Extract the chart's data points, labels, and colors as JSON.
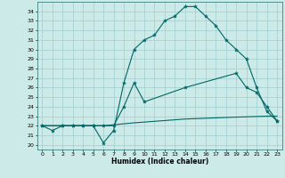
{
  "xlabel": "Humidex (Indice chaleur)",
  "bg_color": "#cceae8",
  "grid_color": "#9ecece",
  "line_color": "#006666",
  "xlim": [
    -0.5,
    23.5
  ],
  "ylim": [
    19.5,
    35.0
  ],
  "yticks": [
    20,
    21,
    22,
    23,
    24,
    25,
    26,
    27,
    28,
    29,
    30,
    31,
    32,
    33,
    34
  ],
  "xticks": [
    0,
    1,
    2,
    3,
    4,
    5,
    6,
    7,
    8,
    9,
    10,
    11,
    12,
    13,
    14,
    15,
    16,
    17,
    18,
    19,
    20,
    21,
    22,
    23
  ],
  "curve1_x": [
    0,
    1,
    2,
    3,
    4,
    5,
    6,
    7,
    8,
    9,
    10,
    11,
    12,
    13,
    14,
    15,
    16,
    17,
    18,
    19,
    20,
    21,
    22,
    23
  ],
  "curve1_y": [
    22.0,
    21.5,
    22.0,
    22.0,
    22.0,
    22.0,
    20.2,
    21.5,
    26.5,
    30.0,
    31.0,
    31.5,
    33.0,
    33.5,
    34.5,
    34.5,
    33.5,
    32.5,
    31.0,
    30.0,
    29.0,
    26.0,
    23.5,
    22.5
  ],
  "curve2_x": [
    0,
    2,
    3,
    4,
    5,
    6,
    7,
    8,
    9,
    10,
    14,
    19,
    20,
    21,
    22,
    23
  ],
  "curve2_y": [
    22.0,
    22.0,
    22.0,
    22.0,
    22.0,
    22.0,
    22.0,
    24.0,
    26.5,
    24.5,
    26.0,
    27.5,
    26.0,
    25.5,
    24.0,
    22.5
  ],
  "curve3_x": [
    0,
    3,
    6,
    9,
    14,
    19,
    22,
    23
  ],
  "curve3_y": [
    22.0,
    22.0,
    22.0,
    22.3,
    22.7,
    22.9,
    23.0,
    23.0
  ]
}
